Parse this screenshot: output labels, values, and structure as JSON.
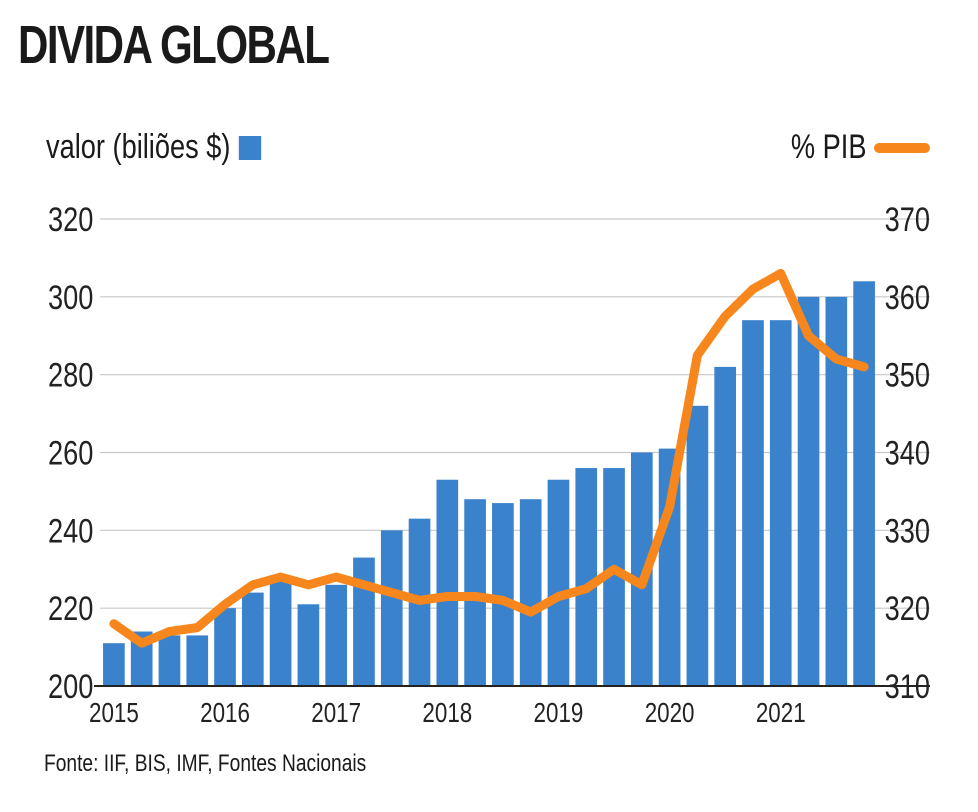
{
  "title": "DIVIDA GLOBAL",
  "legend": {
    "left_label": "valor (biliões $)",
    "right_label": "% PIB"
  },
  "source": "Fonte: IIF, BIS, IMF, Fontes Nacionais",
  "colors": {
    "bars": "#3a82cc",
    "line": "#f7861c",
    "grid": "#c8c8c8",
    "axis": "#222222"
  },
  "chart_data": {
    "type": "bar+line",
    "x_tick_labels": [
      "2015",
      "2016",
      "2017",
      "2018",
      "2019",
      "2020",
      "2021"
    ],
    "left_axis": {
      "label": "valor (biliões $)",
      "ylim": [
        200,
        320
      ],
      "ticks": [
        200,
        220,
        240,
        260,
        280,
        300,
        320
      ]
    },
    "right_axis": {
      "label": "% PIB",
      "ylim": [
        310,
        370
      ],
      "ticks": [
        310,
        320,
        330,
        340,
        350,
        360,
        370
      ]
    },
    "grid": true,
    "series": [
      {
        "name": "valor (biliões $)",
        "type": "bar",
        "axis": "left",
        "values": [
          211,
          214,
          213,
          213,
          220,
          224,
          227,
          221,
          226,
          233,
          240,
          243,
          253,
          248,
          247,
          248,
          253,
          256,
          256,
          260,
          261,
          272,
          282,
          294,
          294,
          300,
          300,
          304
        ]
      },
      {
        "name": "% PIB",
        "type": "line",
        "axis": "right",
        "values": [
          318,
          315.5,
          317,
          317.5,
          320.5,
          323,
          324,
          323,
          324,
          323,
          322,
          321,
          321.5,
          321.5,
          321,
          319.5,
          321.5,
          322.5,
          325,
          323,
          333,
          352.5,
          357.5,
          361,
          363,
          355,
          352,
          351
        ]
      }
    ]
  }
}
